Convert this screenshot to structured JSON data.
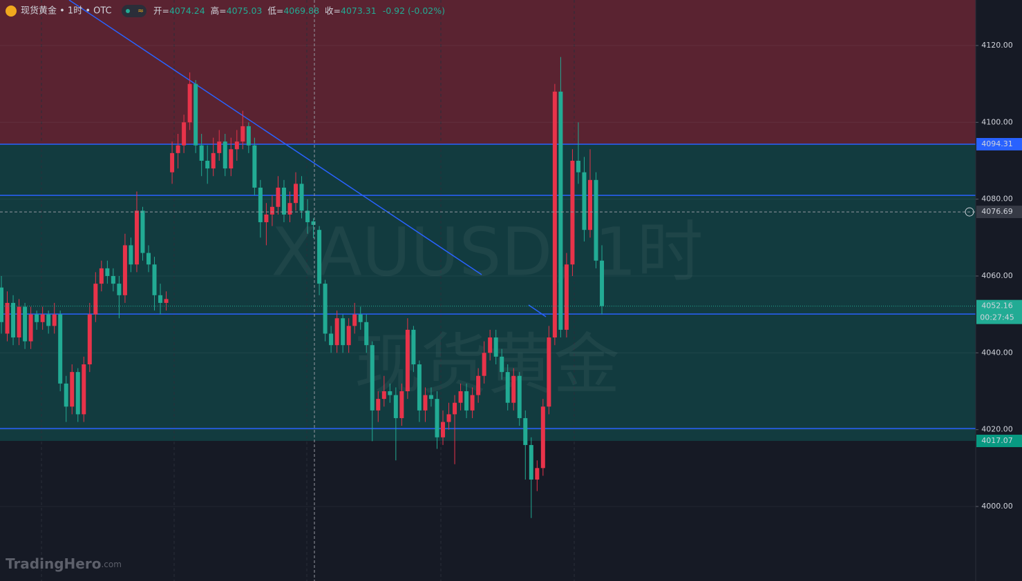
{
  "chart_data": {
    "type": "candlestick",
    "title": "现货黄金 • 1时 • OTC",
    "header": {
      "open_label": "开=",
      "high_label": "高=",
      "low_label": "低=",
      "close_label": "收=",
      "change": "-0.92 (-0.02%)"
    },
    "watermark": [
      "XAUUSD, 1时",
      "现货黄金"
    ],
    "brand": "TradingHero",
    "brand_suffix": ".com",
    "up_color": "#e8334a",
    "down_color": "#22ab94",
    "hover_index": 53,
    "open": [
      4057,
      4045,
      4053,
      4044,
      4052,
      4043,
      4050,
      4048,
      4050,
      4047,
      4050,
      4032,
      4026,
      4035,
      4024,
      4037,
      4050,
      4058,
      4062,
      4060,
      4058,
      4055,
      4068,
      4063,
      4077,
      4066,
      4063,
      4055,
      4053,
      4087,
      4092,
      4094,
      4100,
      4110,
      4094,
      4090,
      4088,
      4092,
      4095,
      4088,
      4093,
      4095,
      4099,
      4094,
      4083,
      4074,
      4076,
      4078,
      4083,
      4076,
      4079,
      4084,
      4077,
      4074.24,
      4072,
      4058,
      4045,
      4042,
      4049,
      4042,
      4047,
      4050,
      4048,
      4042,
      4025,
      4028,
      4030,
      4029,
      4023,
      4030,
      4046,
      4037,
      4025,
      4029,
      4028,
      4018,
      4022,
      4024,
      4027,
      4030,
      4025,
      4029,
      4034,
      4040,
      4044,
      4039,
      4035,
      4027,
      4034,
      4023,
      4016,
      4007,
      4010,
      4026,
      4044,
      4108,
      4046,
      4063,
      4090,
      4087,
      4072,
      4085,
      4064
    ],
    "high": [
      4060,
      4056,
      4055,
      4054,
      4053,
      4052,
      4051,
      4052,
      4051,
      4053,
      4051,
      4034,
      4037,
      4036,
      4039,
      4053,
      4061,
      4064,
      4064,
      4062,
      4060,
      4071,
      4070,
      4082,
      4078,
      4068,
      4065,
      4058,
      4056,
      4095,
      4097,
      4102,
      4113,
      4111,
      4097,
      4094,
      4096,
      4098,
      4097,
      4096,
      4098,
      4103,
      4100,
      4096,
      4085,
      4079,
      4081,
      4086,
      4085,
      4082,
      4087,
      4086,
      4080,
      4075.03,
      4073,
      4059,
      4047,
      4051,
      4050,
      4049,
      4053,
      4052,
      4050,
      4043,
      4030,
      4034,
      4032,
      4031,
      4032,
      4049,
      4047,
      4038,
      4031,
      4031,
      4030,
      4025,
      4027,
      4029,
      4032,
      4032,
      4031,
      4036,
      4043,
      4046,
      4046,
      4041,
      4037,
      4036,
      4035,
      4025,
      4018,
      4012,
      4028,
      4047,
      4110,
      4117,
      4066,
      4093,
      4100,
      4091,
      4093,
      4087,
      4068
    ],
    "low": [
      4045,
      4043,
      4042,
      4042,
      4041,
      4041,
      4046,
      4046,
      4045,
      4045,
      4030,
      4022,
      4024,
      4022,
      4022,
      4035,
      4048,
      4056,
      4058,
      4056,
      4049,
      4053,
      4061,
      4061,
      4064,
      4061,
      4051,
      4050,
      4051,
      4084,
      4088,
      4092,
      4098,
      4092,
      4086,
      4084,
      4086,
      4090,
      4086,
      4086,
      4090,
      4093,
      4092,
      4081,
      4070,
      4068,
      4073,
      4076,
      4074,
      4074,
      4077,
      4075,
      4071,
      4069.88,
      4055,
      4043,
      4040,
      4040,
      4040,
      4040,
      4045,
      4046,
      4040,
      4017,
      4022,
      4026,
      4027,
      4012,
      4021,
      4028,
      4035,
      4022,
      4022,
      4026,
      4015,
      4016,
      4020,
      4011,
      4025,
      4023,
      4023,
      4027,
      4032,
      4038,
      4037,
      4033,
      4025,
      4025,
      4021,
      4007,
      3997,
      4004,
      4008,
      4024,
      4042,
      4044,
      4044,
      4060,
      4084,
      4069,
      4070,
      4062,
      4050
    ],
    "close": [
      4048,
      4053,
      4044,
      4052,
      4043,
      4050,
      4048,
      4050,
      4047,
      4050,
      4032,
      4026,
      4035,
      4024,
      4037,
      4050,
      4058,
      4062,
      4060,
      4058,
      4055,
      4068,
      4063,
      4077,
      4066,
      4063,
      4055,
      4053,
      4054,
      4092,
      4094,
      4100,
      4110,
      4094,
      4090,
      4088,
      4092,
      4095,
      4088,
      4093,
      4095,
      4099,
      4094,
      4083,
      4074,
      4076,
      4078,
      4083,
      4076,
      4079,
      4084,
      4077,
      4074,
      4073.31,
      4058,
      4045,
      4042,
      4049,
      4042,
      4047,
      4050,
      4048,
      4042,
      4025,
      4028,
      4030,
      4029,
      4023,
      4030,
      4046,
      4037,
      4025,
      4029,
      4028,
      4018,
      4022,
      4024,
      4027,
      4030,
      4025,
      4029,
      4034,
      4040,
      4044,
      4039,
      4035,
      4027,
      4034,
      4023,
      4016,
      4007,
      4010,
      4026,
      4044,
      4108,
      4046,
      4063,
      4090,
      4087,
      4072,
      4085,
      4064,
      4052.16
    ],
    "ylim": [
      3980.6,
      4131.85
    ],
    "yticks": [
      {
        "value": 4000,
        "label": "4000.00"
      },
      {
        "value": 4020,
        "label": "4020.00"
      },
      {
        "value": 4040,
        "label": "4040.00"
      },
      {
        "value": 4060,
        "label": "4060.00"
      },
      {
        "value": 4080,
        "label": "4080.00"
      },
      {
        "value": 4100,
        "label": "4100.00"
      },
      {
        "value": 4120,
        "label": "4120.00"
      }
    ],
    "zone_top": 4094.31,
    "zone_bottom": 4017.07,
    "zone_top_color": "#5a2331",
    "zone_mid_color": "#123b3f",
    "zone_bottom_label_color": "#089981",
    "level_color": "#2962ff",
    "lines": [
      4081,
      4050.1,
      4020.3
    ],
    "crosshair_price": 4076.69,
    "countdown": "00:27:45"
  }
}
